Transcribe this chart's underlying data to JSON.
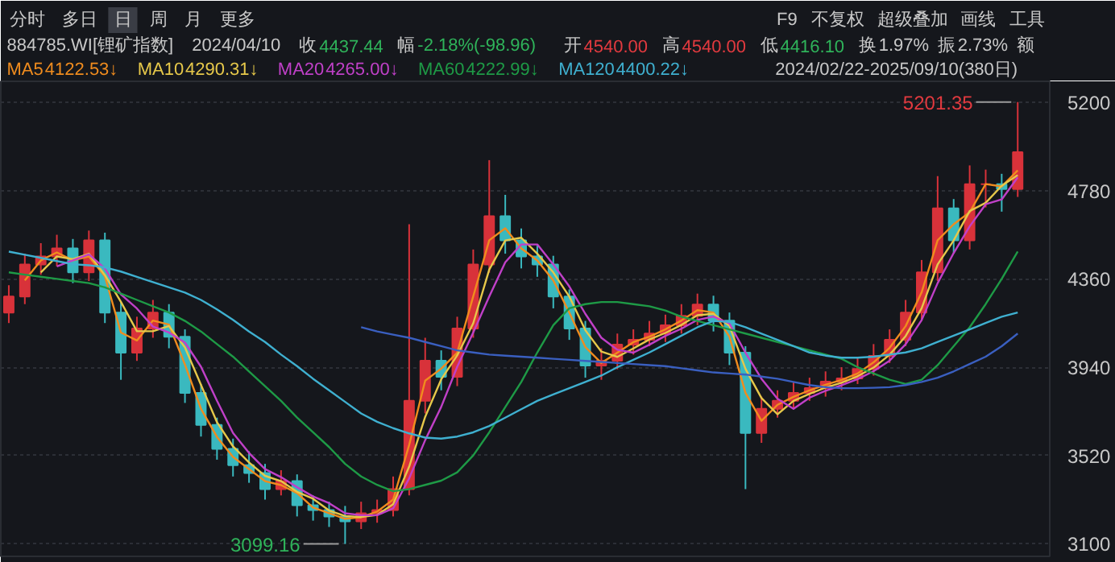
{
  "chart_data": {
    "type": "candlestick",
    "categories": [
      null,
      null,
      null,
      null,
      null,
      null,
      null,
      null,
      null,
      null,
      null,
      null,
      null,
      null,
      null,
      null,
      null,
      null,
      null,
      null,
      null,
      null,
      null,
      null,
      null,
      null,
      null,
      null,
      null,
      null,
      null,
      null,
      null,
      null,
      null,
      null,
      null,
      null,
      null,
      null,
      null,
      null,
      null,
      null,
      null,
      null,
      null,
      null,
      null,
      null,
      null,
      null,
      null,
      null,
      null,
      null,
      null,
      null,
      null,
      null,
      null,
      null,
      null,
      null
    ],
    "ohlc": [
      [
        4200,
        4330,
        4150,
        4276
      ],
      [
        4276,
        4480,
        4240,
        4429
      ],
      [
        4429,
        4530,
        4380,
        4467
      ],
      [
        4467,
        4570,
        4420,
        4505
      ],
      [
        4505,
        4550,
        4340,
        4391
      ],
      [
        4391,
        4590,
        4350,
        4543
      ],
      [
        4543,
        4580,
        4150,
        4200
      ],
      [
        4200,
        4250,
        3880,
        4009
      ],
      [
        4009,
        4180,
        3970,
        4124
      ],
      [
        4124,
        4260,
        4080,
        4200
      ],
      [
        4200,
        4240,
        4030,
        4085
      ],
      [
        4085,
        4120,
        3770,
        3818
      ],
      [
        3818,
        3860,
        3610,
        3665
      ],
      [
        3665,
        3700,
        3500,
        3551
      ],
      [
        3551,
        3600,
        3420,
        3474
      ],
      [
        3474,
        3540,
        3390,
        3436
      ],
      [
        3436,
        3480,
        3310,
        3360
      ],
      [
        3360,
        3450,
        3330,
        3398
      ],
      [
        3398,
        3430,
        3230,
        3283
      ],
      [
        3283,
        3330,
        3210,
        3260
      ],
      [
        3260,
        3300,
        3180,
        3230
      ],
      [
        3230,
        3280,
        3099.16,
        3207
      ],
      [
        3207,
        3300,
        3170,
        3245
      ],
      [
        3245,
        3310,
        3200,
        3260
      ],
      [
        3260,
        3420,
        3230,
        3360
      ],
      [
        3360,
        4620,
        3330,
        3780
      ],
      [
        3780,
        4080,
        3720,
        3971
      ],
      [
        3971,
        4020,
        3830,
        3894
      ],
      [
        3894,
        4180,
        3850,
        4124
      ],
      [
        4124,
        4500,
        4080,
        4429
      ],
      [
        4429,
        4925,
        4390,
        4658
      ],
      [
        4658,
        4760,
        4480,
        4543
      ],
      [
        4543,
        4600,
        4410,
        4467
      ],
      [
        4467,
        4520,
        4370,
        4429
      ],
      [
        4429,
        4470,
        4220,
        4276
      ],
      [
        4276,
        4310,
        4070,
        4124
      ],
      [
        4124,
        4160,
        3890,
        3948
      ],
      [
        3948,
        4030,
        3880,
        3971
      ],
      [
        3971,
        4100,
        3930,
        4047
      ],
      [
        4047,
        4120,
        4000,
        4070
      ],
      [
        4070,
        4160,
        4040,
        4100
      ],
      [
        4100,
        4190,
        4060,
        4139
      ],
      [
        4139,
        4240,
        4100,
        4184
      ],
      [
        4184,
        4290,
        4140,
        4238
      ],
      [
        4238,
        4280,
        4110,
        4161
      ],
      [
        4161,
        4200,
        3950,
        4009
      ],
      [
        4009,
        4040,
        3360,
        3627
      ],
      [
        3627,
        3800,
        3580,
        3742
      ],
      [
        3742,
        3830,
        3700,
        3780
      ],
      [
        3780,
        3870,
        3740,
        3818
      ],
      [
        3818,
        3890,
        3780,
        3841
      ],
      [
        3841,
        3920,
        3800,
        3871
      ],
      [
        3871,
        3940,
        3830,
        3887
      ],
      [
        3887,
        3990,
        3860,
        3932
      ],
      [
        3932,
        4050,
        3900,
        3994
      ],
      [
        3994,
        4120,
        3960,
        4070
      ],
      [
        4070,
        4260,
        4040,
        4200
      ],
      [
        4200,
        4450,
        4160,
        4391
      ],
      [
        4391,
        4849,
        4350,
        4696
      ],
      [
        4696,
        4740,
        4480,
        4543
      ],
      [
        4543,
        4900,
        4500,
        4811
      ],
      [
        4811,
        4880,
        4700,
        4811
      ],
      [
        4811,
        4860,
        4680,
        4788
      ],
      [
        4788,
        5201.35,
        4750,
        4963
      ]
    ],
    "series": [
      {
        "name": "MA5",
        "type": "line",
        "color": "#f08c1e",
        "values": [
          null,
          4353,
          4448,
          4486,
          4448,
          4467,
          4372,
          4105,
          4067,
          4162,
          4143,
          3952,
          3742,
          3608,
          3513,
          3455,
          3398,
          3379,
          3341,
          3272,
          3245,
          3219,
          3226,
          3253,
          3310,
          3570,
          3876,
          3933,
          4009,
          4277,
          4544,
          4601,
          4505,
          4448,
          4353,
          4200,
          4036,
          3960,
          4009,
          4059,
          4085,
          4120,
          4162,
          4211,
          4200,
          4085,
          3818,
          3685,
          3761,
          3799,
          3830,
          3856,
          3879,
          3910,
          3963,
          4032,
          4135,
          4296,
          4544,
          4620,
          4677,
          4811,
          4800,
          4876
        ]
      },
      {
        "name": "MA10",
        "type": "line",
        "color": "#e6c84a",
        "values": [
          null,
          null,
          4391,
          4467,
          4454,
          4480,
          4378,
          4251,
          4111,
          4111,
          4136,
          4034,
          3856,
          3678,
          3563,
          3487,
          3423,
          3398,
          3347,
          3314,
          3258,
          3232,
          3227,
          3237,
          3288,
          3467,
          3704,
          3882,
          3996,
          4149,
          4404,
          4543,
          4556,
          4480,
          4391,
          4276,
          4116,
          4014,
          3989,
          4029,
          4072,
          4103,
          4141,
          4187,
          4194,
          4136,
          3932,
          3793,
          3716,
          3780,
          3813,
          3843,
          3866,
          3897,
          3938,
          3999,
          4088,
          4220,
          4429,
          4543,
          4683,
          4722,
          4803,
          4854
        ]
      },
      {
        "name": "MA20",
        "type": "line",
        "color": "#c040c8",
        "values": [
          null,
          null,
          null,
          4419,
          4448,
          4477,
          4410,
          4286,
          4219,
          4133,
          4105,
          4057,
          3942,
          3780,
          3627,
          3532,
          3455,
          3417,
          3369,
          3325,
          3293,
          3245,
          3236,
          3236,
          3268,
          3411,
          3593,
          3751,
          3942,
          4105,
          4276,
          4439,
          4524,
          4524,
          4429,
          4324,
          4194,
          4080,
          4023,
          4009,
          4047,
          4089,
          4123,
          4165,
          4181,
          4148,
          4009,
          3885,
          3790,
          3742,
          3795,
          3828,
          3854,
          3883,
          3921,
          3971,
          4049,
          4164,
          4340,
          4483,
          4610,
          4715,
          4738,
          4843
        ]
      },
      {
        "name": "MA60",
        "type": "line",
        "color": "#1e9a46",
        "values": [
          4391,
          4380,
          4370,
          4360,
          4350,
          4340,
          4320,
          4290,
          4260,
          4230,
          4200,
          4160,
          4110,
          4050,
          3990,
          3920,
          3850,
          3780,
          3700,
          3630,
          3560,
          3480,
          3420,
          3380,
          3350,
          3360,
          3380,
          3400,
          3440,
          3520,
          3630,
          3750,
          3870,
          4010,
          4140,
          4220,
          4240,
          4250,
          4250,
          4240,
          4230,
          4210,
          4180,
          4160,
          4140,
          4120,
          4100,
          4080,
          4060,
          4040,
          4020,
          4000,
          3980,
          3940,
          3910,
          3880,
          3860,
          3880,
          3950,
          4040,
          4130,
          4240,
          4360,
          4490
        ]
      },
      {
        "name": "MA120",
        "type": "line",
        "color": "#3fb0d0",
        "values": [
          4490,
          4475,
          4460,
          4445,
          4430,
          4425,
          4415,
          4395,
          4370,
          4345,
          4320,
          4295,
          4260,
          4215,
          4165,
          4110,
          4060,
          4000,
          3945,
          3885,
          3830,
          3775,
          3720,
          3680,
          3650,
          3625,
          3605,
          3600,
          3610,
          3630,
          3660,
          3700,
          3740,
          3780,
          3810,
          3840,
          3870,
          3900,
          3940,
          3975,
          4010,
          4050,
          4090,
          4130,
          4160,
          4155,
          4130,
          4100,
          4070,
          4040,
          4010,
          3995,
          3985,
          3985,
          3990,
          4000,
          4010,
          4030,
          4060,
          4090,
          4120,
          4150,
          4180,
          4200
        ]
      },
      {
        "type": "line",
        "color": "#3a5fc0",
        "values": [
          null,
          null,
          null,
          null,
          null,
          null,
          null,
          null,
          null,
          null,
          null,
          null,
          null,
          null,
          null,
          null,
          null,
          null,
          null,
          null,
          null,
          null,
          4130,
          4110,
          4095,
          4080,
          4060,
          4040,
          4020,
          4010,
          4000,
          3995,
          3990,
          3985,
          3980,
          3975,
          3970,
          3965,
          3960,
          3955,
          3950,
          3945,
          3935,
          3925,
          3915,
          3910,
          3905,
          3895,
          3885,
          3870,
          3855,
          3845,
          3840,
          3840,
          3842,
          3845,
          3855,
          3870,
          3890,
          3920,
          3955,
          3990,
          4040,
          4100
        ]
      }
    ],
    "ylim": [
      3040,
      5300
    ],
    "yticks": [
      3100,
      3520,
      3940,
      4360,
      4780,
      5200
    ],
    "grid": "y",
    "line_style": "solid",
    "marker": "none",
    "annotations": [
      "分时",
      "多日",
      "日",
      "周",
      "月",
      "更多",
      "F9",
      "不复权",
      "超级叠加",
      "画线",
      "工具",
      "884785.WI[锂矿指数]",
      "2024/04/10",
      "收",
      "4437.44",
      "幅",
      "-2.18%(-98.96)",
      "开",
      "4540.00",
      "高",
      "4540.00",
      "低",
      "4416.10",
      "换",
      "1.97%",
      "振",
      "2.73%",
      "额",
      "4122.53↓",
      "4290.31↓",
      "4265.00↓",
      "4222.99↓",
      "4400.22↓",
      "2024/02/22-2025/09/10(380日)",
      "5201.35",
      "3099.16"
    ]
  }
}
